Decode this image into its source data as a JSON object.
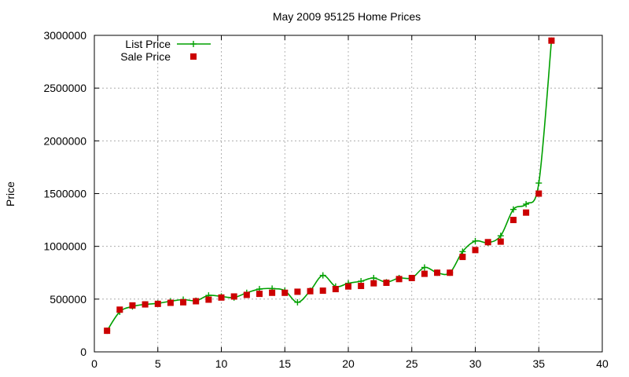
{
  "chart_data": {
    "type": "line",
    "title": "May 2009 95125 Home Prices",
    "xlabel": "",
    "ylabel": "Price",
    "xlim": [
      0,
      40
    ],
    "ylim": [
      0,
      3000000
    ],
    "xticks": [
      "0",
      "5",
      "10",
      "15",
      "20",
      "25",
      "30",
      "35",
      "40"
    ],
    "yticks": [
      "0",
      "500000",
      "1000000",
      "1500000",
      "2000000",
      "2500000",
      "3000000"
    ],
    "grid": true,
    "legend": "top-left",
    "series": [
      {
        "name": "List Price",
        "style": "line+plus",
        "color": "#00a000",
        "x": [
          1,
          2,
          3,
          4,
          5,
          6,
          7,
          8,
          9,
          10,
          11,
          12,
          13,
          14,
          15,
          16,
          17,
          18,
          19,
          20,
          21,
          22,
          23,
          24,
          25,
          26,
          27,
          28,
          29,
          30,
          31,
          32,
          33,
          34,
          35,
          36
        ],
        "values": [
          200000,
          380000,
          430000,
          450000,
          460000,
          480000,
          495000,
          485000,
          535000,
          525000,
          515000,
          560000,
          595000,
          600000,
          580000,
          470000,
          580000,
          725000,
          620000,
          650000,
          670000,
          700000,
          660000,
          700000,
          700000,
          800000,
          750000,
          750000,
          950000,
          1050000,
          1035000,
          1100000,
          1350000,
          1400000,
          1600000,
          2950000
        ]
      },
      {
        "name": "Sale Price",
        "style": "square",
        "color": "#cc0000",
        "x": [
          1,
          2,
          3,
          4,
          5,
          6,
          7,
          8,
          9,
          10,
          11,
          12,
          13,
          14,
          15,
          16,
          17,
          18,
          19,
          20,
          21,
          22,
          23,
          24,
          25,
          26,
          27,
          28,
          29,
          30,
          31,
          32,
          33,
          34,
          35,
          36
        ],
        "values": [
          200000,
          400000,
          440000,
          450000,
          455000,
          465000,
          470000,
          480000,
          495000,
          515000,
          525000,
          540000,
          550000,
          560000,
          560000,
          570000,
          575000,
          580000,
          595000,
          620000,
          625000,
          650000,
          655000,
          690000,
          700000,
          740000,
          750000,
          750000,
          900000,
          965000,
          1040000,
          1045000,
          1250000,
          1320000,
          1500000,
          2950000
        ]
      }
    ]
  }
}
